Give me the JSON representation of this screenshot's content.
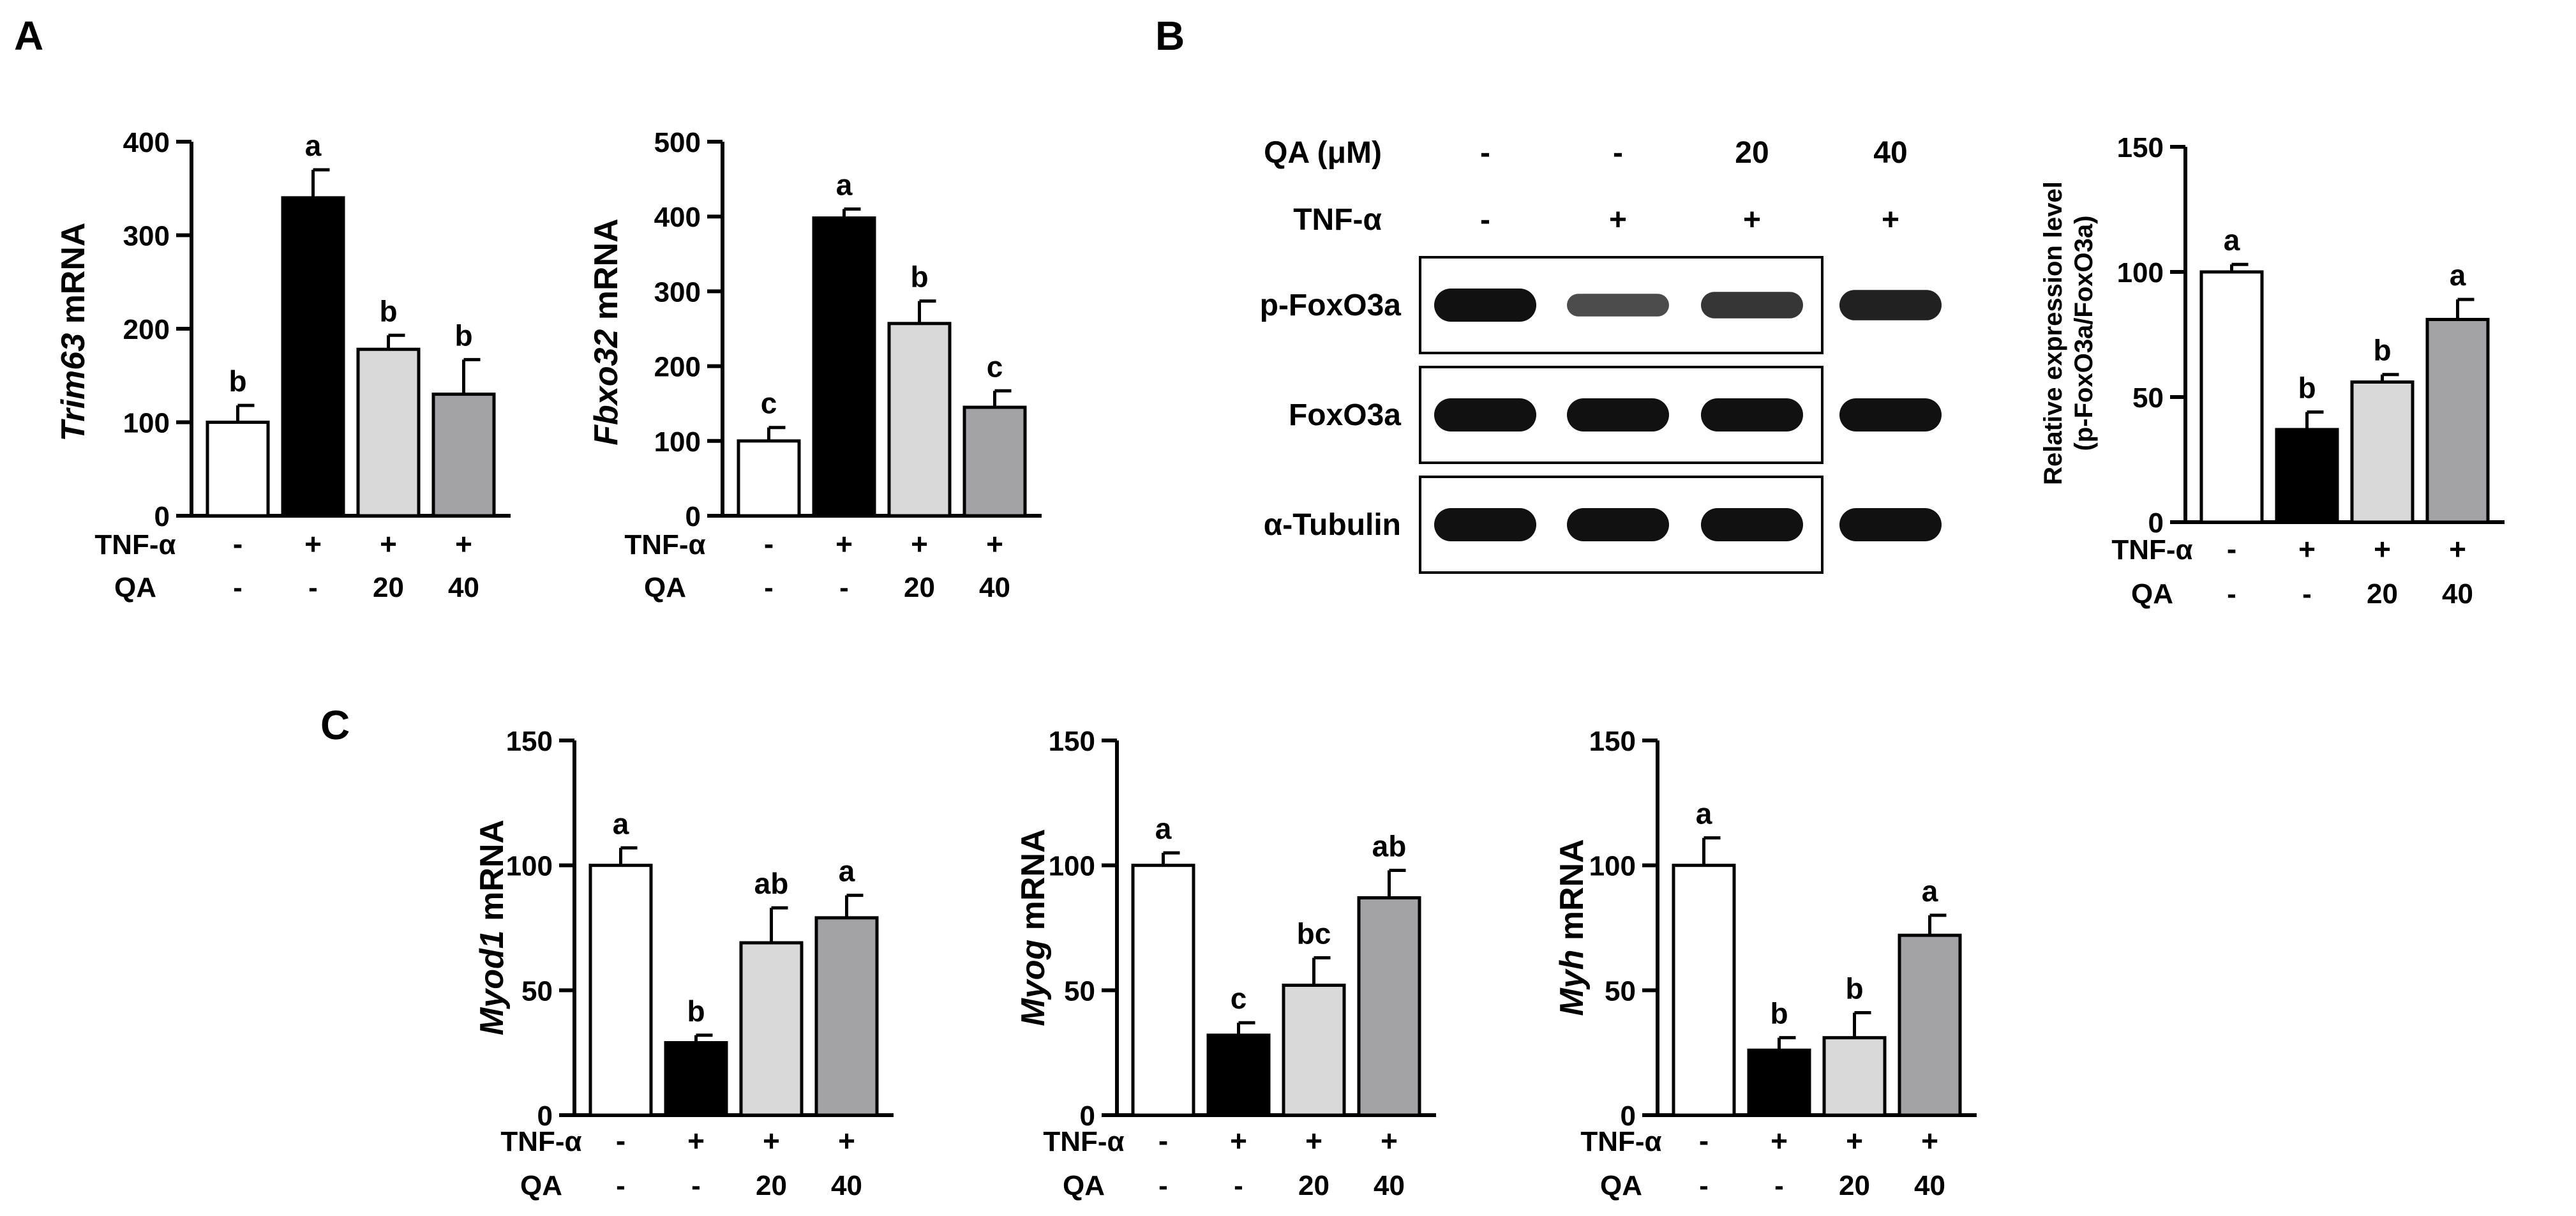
{
  "panel_letters": [
    "A",
    "B",
    "C"
  ],
  "colors": {
    "ctrl": "#ffffff",
    "tnf": "#000000",
    "qa20": "#d9d9d9",
    "qa40": "#a2a2a7",
    "edge": "#000000"
  },
  "conditions": {
    "tnf_label": "TNF-α",
    "qa_label": "QA",
    "tnf_values": [
      "-",
      "+",
      "+",
      "+"
    ],
    "qa_values": [
      "-",
      "-",
      "20",
      "40"
    ]
  },
  "blot": {
    "qa_header": "QA (μM)",
    "tnf_header": "TNF-α",
    "qa_values": [
      "-",
      "-",
      "20",
      "40"
    ],
    "tnf_values": [
      "-",
      "+",
      "+",
      "+"
    ],
    "rows": [
      {
        "label": "p-FoxO3a",
        "intensity": [
          1.0,
          0.45,
          0.65,
          0.85
        ]
      },
      {
        "label": "FoxO3a",
        "intensity": [
          1.0,
          1.0,
          1.0,
          1.0
        ]
      },
      {
        "label": "α-Tubulin",
        "intensity": [
          1.0,
          1.0,
          1.0,
          1.0
        ]
      }
    ]
  },
  "chart_data": [
    {
      "id": "trim63",
      "type": "bar",
      "ylabel_italic": "Trim63",
      "ylabel_rest": " mRNA",
      "ylim": [
        0,
        400
      ],
      "yticks": [
        0,
        100,
        200,
        300,
        400
      ],
      "values": [
        100,
        340,
        178,
        130
      ],
      "errors": [
        18,
        30,
        15,
        37
      ],
      "letters": [
        "b",
        "a",
        "b",
        "b"
      ]
    },
    {
      "id": "fbxo32",
      "type": "bar",
      "ylabel_italic": "Fbxo32",
      "ylabel_rest": " mRNA",
      "ylim": [
        0,
        500
      ],
      "yticks": [
        0,
        100,
        200,
        300,
        400,
        500
      ],
      "values": [
        100,
        398,
        257,
        145
      ],
      "errors": [
        18,
        12,
        30,
        22
      ],
      "letters": [
        "c",
        "a",
        "b",
        "c"
      ]
    },
    {
      "id": "pfoxo3a",
      "type": "bar",
      "ylabel_lines": [
        "Relative expression level",
        "(p-FoxO3a/FoxO3a)"
      ],
      "ylim": [
        0,
        150
      ],
      "yticks": [
        0,
        50,
        100,
        150
      ],
      "values": [
        100,
        37,
        56,
        81
      ],
      "errors": [
        3,
        7,
        3,
        8
      ],
      "letters": [
        "a",
        "b",
        "b",
        "a"
      ]
    },
    {
      "id": "myod1",
      "type": "bar",
      "ylabel_italic": "Myod1",
      "ylabel_rest": " mRNA",
      "ylim": [
        0,
        150
      ],
      "yticks": [
        0,
        50,
        100,
        150
      ],
      "values": [
        100,
        29,
        69,
        79
      ],
      "errors": [
        7,
        3,
        14,
        9
      ],
      "letters": [
        "a",
        "b",
        "ab",
        "a"
      ]
    },
    {
      "id": "myog",
      "type": "bar",
      "ylabel_italic": "Myog",
      "ylabel_rest": " mRNA",
      "ylim": [
        0,
        150
      ],
      "yticks": [
        0,
        50,
        100,
        150
      ],
      "values": [
        100,
        32,
        52,
        87
      ],
      "errors": [
        5,
        5,
        11,
        11
      ],
      "letters": [
        "a",
        "c",
        "bc",
        "ab"
      ]
    },
    {
      "id": "myh",
      "type": "bar",
      "ylabel_italic": "Myh",
      "ylabel_rest": " mRNA",
      "ylim": [
        0,
        150
      ],
      "yticks": [
        0,
        50,
        100,
        150
      ],
      "values": [
        100,
        26,
        31,
        72
      ],
      "errors": [
        11,
        5,
        10,
        8
      ],
      "letters": [
        "a",
        "b",
        "b",
        "a"
      ]
    }
  ]
}
